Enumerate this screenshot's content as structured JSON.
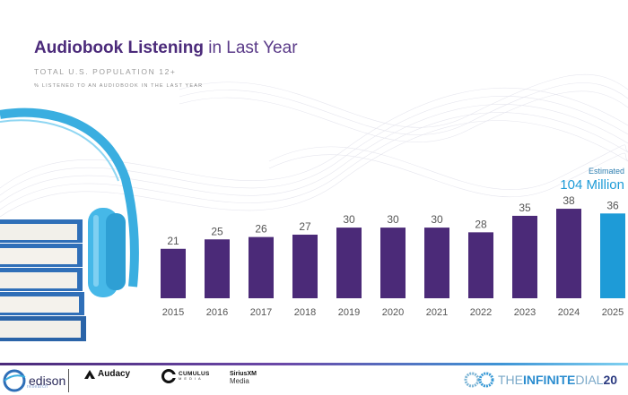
{
  "header": {
    "title_bold": "Audiobook Listening",
    "title_rest": " in Last Year",
    "subtitle": "TOTAL U.S. POPULATION 12+",
    "measure": "% LISTENED TO AN AUDIOBOOK IN THE LAST YEAR"
  },
  "annotation": {
    "label": "Estimated",
    "value": "104 Million"
  },
  "colors": {
    "bar_primary": "#4b2a78",
    "bar_highlight": "#1e9bd7",
    "title": "#4b2a7a",
    "annotation": "#1e9bd7"
  },
  "chart_data": {
    "type": "bar",
    "title": "Audiobook Listening in Last Year",
    "subtitle": "Total U.S. Population 12+ — % listened to an audiobook in the last year",
    "categories": [
      "2015",
      "2016",
      "2017",
      "2018",
      "2019",
      "2020",
      "2021",
      "2022",
      "2023",
      "2024",
      "2025"
    ],
    "values": [
      21,
      25,
      26,
      27,
      30,
      30,
      30,
      28,
      35,
      38,
      36
    ],
    "highlight_category": "2025",
    "xlabel": "",
    "ylabel": "%",
    "ylim": [
      0,
      40
    ],
    "grid": false,
    "data_labels": true,
    "annotation": "Estimated 104 Million (2025)"
  },
  "footer": {
    "logos": {
      "edison": "edison",
      "edison_small": "research",
      "audacy": "Audacy",
      "cumulus_1": "CUMULUS",
      "cumulus_2": "MEDIA",
      "sirius_1": "SiriusXM",
      "sirius_2": "Media"
    },
    "brand_pre": "THE ",
    "brand_bold": "INFINITE",
    "brand_post": " DIAL",
    "brand_year": "20"
  }
}
